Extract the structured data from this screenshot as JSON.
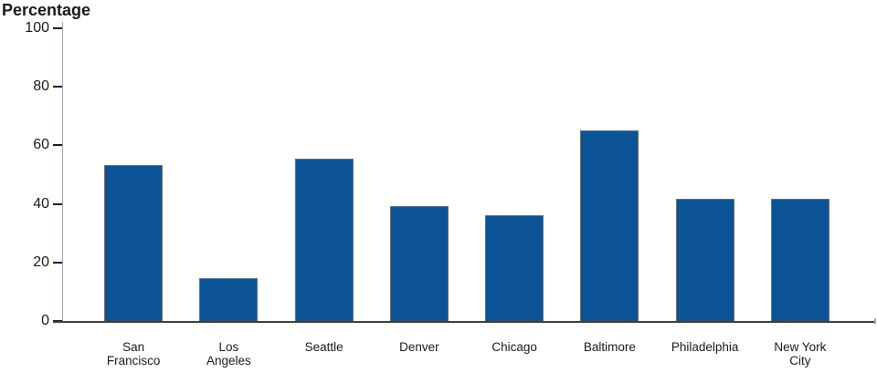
{
  "chart_data": {
    "type": "bar",
    "title": "Percentage",
    "ylabel": "Percentage",
    "xlabel": "",
    "categories": [
      "San Francisco",
      "Los Angeles",
      "Seattle",
      "Denver",
      "Chicago",
      "Baltimore",
      "Philadelphia",
      "New York City"
    ],
    "category_labels": [
      "San\nFrancisco",
      "Los\nAngeles",
      "Seattle",
      "Denver",
      "Chicago",
      "Baltimore",
      "Philadelphia",
      "New York\nCity"
    ],
    "values": [
      53.3,
      14.5,
      55.4,
      39.4,
      36.0,
      65.0,
      41.7,
      41.6
    ],
    "ylim": [
      0,
      100
    ],
    "y_ticks": [
      0,
      20,
      40,
      60,
      80,
      100
    ],
    "grid": false,
    "legend": "none",
    "bar_color": "#0B5394"
  },
  "colors": {
    "bar_fill": "#0B5394",
    "bar_border": "#6d6e71",
    "axis_line": "#9aa6b6",
    "tick_mark": "#1a1a1a",
    "baseline": "#3f3f3f",
    "text": "#1a1a1a"
  }
}
